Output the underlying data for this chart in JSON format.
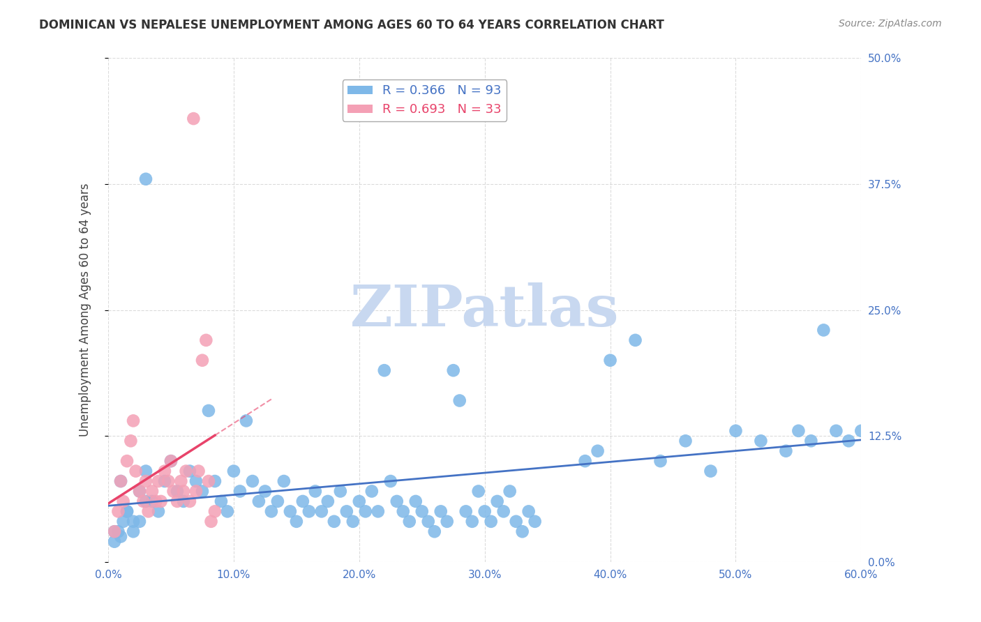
{
  "title": "DOMINICAN VS NEPALESE UNEMPLOYMENT AMONG AGES 60 TO 64 YEARS CORRELATION CHART",
  "source": "Source: ZipAtlas.com",
  "xlabel": "",
  "ylabel": "Unemployment Among Ages 60 to 64 years",
  "xlim": [
    0.0,
    0.6
  ],
  "ylim": [
    0.0,
    0.5
  ],
  "xticks": [
    0.0,
    0.1,
    0.2,
    0.3,
    0.4,
    0.5,
    0.6
  ],
  "yticks": [
    0.0,
    0.125,
    0.25,
    0.375,
    0.5
  ],
  "xtick_labels": [
    "0.0%",
    "10.0%",
    "20.0%",
    "30.0%",
    "40.0%",
    "50.0%",
    "60.0%"
  ],
  "ytick_labels": [
    "0.0%",
    "12.5%",
    "25.0%",
    "37.5%",
    "50.0%"
  ],
  "blue_color": "#7EB8E8",
  "pink_color": "#F4A0B5",
  "blue_line_color": "#4472C4",
  "pink_line_color": "#E8436A",
  "legend_blue_R": "R = 0.366",
  "legend_blue_N": "N = 93",
  "legend_pink_R": "R = 0.693",
  "legend_pink_N": "N = 33",
  "R_blue": 0.366,
  "N_blue": 93,
  "R_pink": 0.693,
  "N_pink": 33,
  "watermark": "ZIPatlas",
  "watermark_color": "#C8D8F0",
  "dominican_x": [
    0.02,
    0.03,
    0.01,
    0.015,
    0.005,
    0.01,
    0.025,
    0.03,
    0.035,
    0.04,
    0.045,
    0.05,
    0.055,
    0.06,
    0.065,
    0.07,
    0.075,
    0.08,
    0.085,
    0.09,
    0.095,
    0.1,
    0.105,
    0.11,
    0.115,
    0.12,
    0.125,
    0.13,
    0.135,
    0.14,
    0.145,
    0.15,
    0.155,
    0.16,
    0.165,
    0.17,
    0.175,
    0.18,
    0.185,
    0.19,
    0.195,
    0.2,
    0.205,
    0.21,
    0.215,
    0.22,
    0.225,
    0.23,
    0.235,
    0.24,
    0.245,
    0.25,
    0.255,
    0.26,
    0.265,
    0.27,
    0.275,
    0.28,
    0.285,
    0.29,
    0.295,
    0.3,
    0.305,
    0.31,
    0.315,
    0.32,
    0.325,
    0.33,
    0.335,
    0.34,
    0.38,
    0.39,
    0.4,
    0.42,
    0.44,
    0.46,
    0.48,
    0.5,
    0.52,
    0.54,
    0.55,
    0.56,
    0.57,
    0.58,
    0.59,
    0.6,
    0.015,
    0.02,
    0.025,
    0.03,
    0.005,
    0.008,
    0.012
  ],
  "dominican_y": [
    0.04,
    0.06,
    0.08,
    0.05,
    0.03,
    0.025,
    0.07,
    0.09,
    0.06,
    0.05,
    0.08,
    0.1,
    0.07,
    0.06,
    0.09,
    0.08,
    0.07,
    0.15,
    0.08,
    0.06,
    0.05,
    0.09,
    0.07,
    0.14,
    0.08,
    0.06,
    0.07,
    0.05,
    0.06,
    0.08,
    0.05,
    0.04,
    0.06,
    0.05,
    0.07,
    0.05,
    0.06,
    0.04,
    0.07,
    0.05,
    0.04,
    0.06,
    0.05,
    0.07,
    0.05,
    0.19,
    0.08,
    0.06,
    0.05,
    0.04,
    0.06,
    0.05,
    0.04,
    0.03,
    0.05,
    0.04,
    0.19,
    0.16,
    0.05,
    0.04,
    0.07,
    0.05,
    0.04,
    0.06,
    0.05,
    0.07,
    0.04,
    0.03,
    0.05,
    0.04,
    0.1,
    0.11,
    0.2,
    0.22,
    0.1,
    0.12,
    0.09,
    0.13,
    0.12,
    0.11,
    0.13,
    0.12,
    0.23,
    0.13,
    0.12,
    0.13,
    0.05,
    0.03,
    0.04,
    0.38,
    0.02,
    0.03,
    0.04
  ],
  "nepalese_x": [
    0.005,
    0.008,
    0.01,
    0.012,
    0.015,
    0.018,
    0.02,
    0.022,
    0.025,
    0.028,
    0.03,
    0.032,
    0.035,
    0.038,
    0.04,
    0.042,
    0.045,
    0.048,
    0.05,
    0.052,
    0.055,
    0.058,
    0.06,
    0.062,
    0.065,
    0.068,
    0.07,
    0.072,
    0.075,
    0.078,
    0.08,
    0.082,
    0.085
  ],
  "nepalese_y": [
    0.03,
    0.05,
    0.08,
    0.06,
    0.1,
    0.12,
    0.14,
    0.09,
    0.07,
    0.06,
    0.08,
    0.05,
    0.07,
    0.06,
    0.08,
    0.06,
    0.09,
    0.08,
    0.1,
    0.07,
    0.06,
    0.08,
    0.07,
    0.09,
    0.06,
    0.44,
    0.07,
    0.09,
    0.2,
    0.22,
    0.08,
    0.04,
    0.05
  ]
}
